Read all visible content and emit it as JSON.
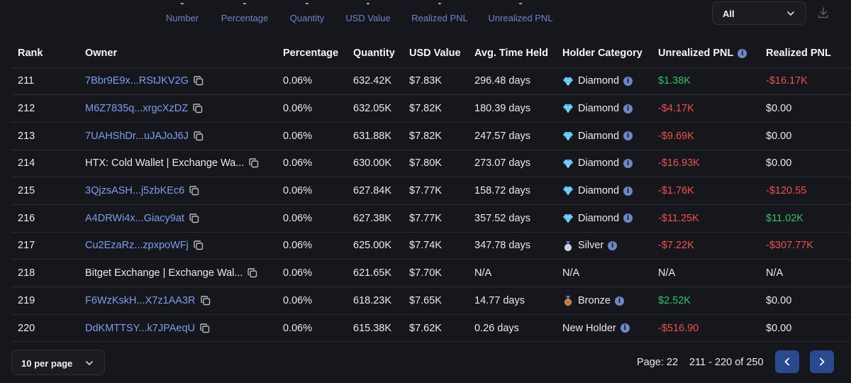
{
  "stats": [
    {
      "value": "-",
      "label": "Number"
    },
    {
      "value": "-",
      "label": "Percentage"
    },
    {
      "value": "-",
      "label": "Quantity"
    },
    {
      "value": "-",
      "label": "USD Value"
    },
    {
      "value": "-",
      "label": "Realized PNL"
    },
    {
      "value": "-",
      "label": "Unrealized PNL"
    }
  ],
  "filter": {
    "value": "All"
  },
  "columns": {
    "rank": "Rank",
    "owner": "Owner",
    "percentage": "Percentage",
    "quantity": "Quantity",
    "usd_value": "USD Value",
    "avg_time": "Avg. Time Held",
    "category": "Holder Category",
    "unrealized": "Unrealized PNL",
    "realized": "Realized PNL"
  },
  "rows": [
    {
      "rank": "211",
      "owner": "7Bbr9E9x...RStJKV2G",
      "owner_is_address": true,
      "percentage": "0.06%",
      "quantity": "632.42K",
      "usd": "$7.83K",
      "avg_time": "296.48 days",
      "category": "Diamond",
      "category_icon": "diamond-icon",
      "unrealized": "$1.38K",
      "unrealized_tone": "positive",
      "realized": "-$16.17K",
      "realized_tone": "negative"
    },
    {
      "rank": "212",
      "owner": "M6Z7835q...xrgcXzDZ",
      "owner_is_address": true,
      "percentage": "0.06%",
      "quantity": "632.05K",
      "usd": "$7.82K",
      "avg_time": "180.39 days",
      "category": "Diamond",
      "category_icon": "diamond-icon",
      "unrealized": "-$4.17K",
      "unrealized_tone": "negative",
      "realized": "$0.00",
      "realized_tone": "neutral"
    },
    {
      "rank": "213",
      "owner": "7UAHShDr...uJAJoJ6J",
      "owner_is_address": true,
      "percentage": "0.06%",
      "quantity": "631.88K",
      "usd": "$7.82K",
      "avg_time": "247.57 days",
      "category": "Diamond",
      "category_icon": "diamond-icon",
      "unrealized": "-$9.69K",
      "unrealized_tone": "negative",
      "realized": "$0.00",
      "realized_tone": "neutral"
    },
    {
      "rank": "214",
      "owner": "HTX: Cold Wallet | Exchange Wa...",
      "owner_is_address": false,
      "percentage": "0.06%",
      "quantity": "630.00K",
      "usd": "$7.80K",
      "avg_time": "273.07 days",
      "category": "Diamond",
      "category_icon": "diamond-icon",
      "unrealized": "-$16.93K",
      "unrealized_tone": "negative",
      "realized": "$0.00",
      "realized_tone": "neutral"
    },
    {
      "rank": "215",
      "owner": "3QjzsASH...j5zbKEc6",
      "owner_is_address": true,
      "percentage": "0.06%",
      "quantity": "627.84K",
      "usd": "$7.77K",
      "avg_time": "158.72 days",
      "category": "Diamond",
      "category_icon": "diamond-icon",
      "unrealized": "-$1.76K",
      "unrealized_tone": "negative",
      "realized": "-$120.55",
      "realized_tone": "negative"
    },
    {
      "rank": "216",
      "owner": "A4DRWi4x...Giacy9at",
      "owner_is_address": true,
      "percentage": "0.06%",
      "quantity": "627.38K",
      "usd": "$7.77K",
      "avg_time": "357.52 days",
      "category": "Diamond",
      "category_icon": "diamond-icon",
      "unrealized": "-$11.25K",
      "unrealized_tone": "negative",
      "realized": "$11.02K",
      "realized_tone": "positive"
    },
    {
      "rank": "217",
      "owner": "Cu2EzaRz...zpxpoWFj",
      "owner_is_address": true,
      "percentage": "0.06%",
      "quantity": "625.00K",
      "usd": "$7.74K",
      "avg_time": "347.78 days",
      "category": "Silver",
      "category_icon": "silver-medal-icon",
      "unrealized": "-$7.22K",
      "unrealized_tone": "negative",
      "realized": "-$307.77K",
      "realized_tone": "negative"
    },
    {
      "rank": "218",
      "owner": "Bitget Exchange | Exchange Wal...",
      "owner_is_address": false,
      "percentage": "0.06%",
      "quantity": "621.65K",
      "usd": "$7.70K",
      "avg_time": "N/A",
      "category": "N/A",
      "category_icon": "",
      "unrealized": "N/A",
      "unrealized_tone": "neutral",
      "realized": "N/A",
      "realized_tone": "neutral"
    },
    {
      "rank": "219",
      "owner": "F6WzKskH...X7z1AA3R",
      "owner_is_address": true,
      "percentage": "0.06%",
      "quantity": "618.23K",
      "usd": "$7.65K",
      "avg_time": "14.77 days",
      "category": "Bronze",
      "category_icon": "bronze-medal-icon",
      "unrealized": "$2.52K",
      "unrealized_tone": "positive",
      "realized": "$0.00",
      "realized_tone": "neutral"
    },
    {
      "rank": "220",
      "owner": "DdKMTTSY...k7JPAeqU",
      "owner_is_address": true,
      "percentage": "0.06%",
      "quantity": "615.38K",
      "usd": "$7.62K",
      "avg_time": "0.26 days",
      "category": "New Holder",
      "category_icon": "",
      "unrealized": "-$516.90",
      "unrealized_tone": "negative",
      "realized": "$0.00",
      "realized_tone": "neutral"
    }
  ],
  "pagination": {
    "per_page": "10 per page",
    "page": "Page: 22",
    "range": "211 - 220 of 250"
  },
  "colors": {
    "background": "#16171c",
    "link": "#7e9bf0",
    "positive": "#2fc36a",
    "negative": "#f0504e",
    "accent_button": "#2a4a8f"
  }
}
